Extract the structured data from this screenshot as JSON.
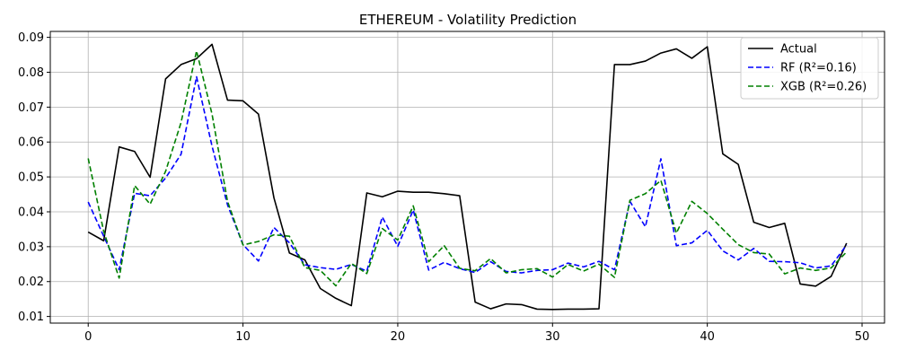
{
  "chart_data": {
    "type": "line",
    "title": "ETHEREUM - Volatility Prediction",
    "xlabel": "",
    "ylabel": "",
    "xlim": [
      -2.45,
      51.45
    ],
    "ylim": [
      0.0081,
      0.0917
    ],
    "xticks": [
      0,
      10,
      20,
      30,
      40,
      50
    ],
    "yticks": [
      0.01,
      0.02,
      0.03,
      0.04,
      0.05,
      0.06,
      0.07,
      0.08,
      0.09
    ],
    "xtick_labels": [
      "0",
      "10",
      "20",
      "30",
      "40",
      "50"
    ],
    "ytick_labels": [
      "0.01",
      "0.02",
      "0.03",
      "0.04",
      "0.05",
      "0.06",
      "0.07",
      "0.08",
      "0.09"
    ],
    "grid": true,
    "legend_position": "top-right",
    "x": [
      0,
      1,
      2,
      3,
      4,
      5,
      6,
      7,
      8,
      9,
      10,
      11,
      12,
      13,
      14,
      15,
      16,
      17,
      18,
      19,
      20,
      21,
      22,
      23,
      24,
      25,
      26,
      27,
      28,
      29,
      30,
      31,
      32,
      33,
      34,
      35,
      36,
      37,
      38,
      39,
      40,
      41,
      42,
      43,
      44,
      45,
      46,
      47,
      48,
      49
    ],
    "series": [
      {
        "name": "Actual",
        "color": "#000000",
        "dash": "solid",
        "values": [
          0.0342,
          0.0317,
          0.0586,
          0.0573,
          0.0499,
          0.0781,
          0.0822,
          0.0839,
          0.088,
          0.072,
          0.0718,
          0.068,
          0.044,
          0.0282,
          0.0262,
          0.018,
          0.0152,
          0.0131,
          0.0454,
          0.0443,
          0.0459,
          0.0456,
          0.0456,
          0.0452,
          0.0446,
          0.0141,
          0.0122,
          0.0136,
          0.0134,
          0.0121,
          0.012,
          0.0121,
          0.0121,
          0.0122,
          0.0822,
          0.0822,
          0.0832,
          0.0855,
          0.0867,
          0.084,
          0.0873,
          0.0566,
          0.0536,
          0.037,
          0.0355,
          0.0367,
          0.0193,
          0.0187,
          0.0215,
          0.031
        ]
      },
      {
        "name": "RF (R²=0.16)",
        "color": "#0000ff",
        "dash": "dashed",
        "values": [
          0.0428,
          0.033,
          0.0234,
          0.0453,
          0.0446,
          0.0497,
          0.0565,
          0.0787,
          0.0588,
          0.042,
          0.0306,
          0.0259,
          0.0355,
          0.0311,
          0.0248,
          0.024,
          0.0235,
          0.0249,
          0.023,
          0.0385,
          0.0301,
          0.0405,
          0.0233,
          0.0255,
          0.0237,
          0.0226,
          0.0257,
          0.0229,
          0.0225,
          0.0232,
          0.0234,
          0.0253,
          0.0242,
          0.0258,
          0.0234,
          0.043,
          0.0357,
          0.0552,
          0.0303,
          0.0311,
          0.0347,
          0.0288,
          0.0262,
          0.0295,
          0.0258,
          0.0257,
          0.0254,
          0.0239,
          0.0245,
          0.0305
        ]
      },
      {
        "name": "XGB (R²=0.26)",
        "color": "#008000",
        "dash": "dashed",
        "values": [
          0.0553,
          0.0344,
          0.021,
          0.0475,
          0.0422,
          0.0516,
          0.0656,
          0.0861,
          0.068,
          0.043,
          0.0305,
          0.0315,
          0.0334,
          0.033,
          0.024,
          0.0232,
          0.0188,
          0.0252,
          0.0223,
          0.0352,
          0.0319,
          0.0417,
          0.0257,
          0.0303,
          0.0238,
          0.0231,
          0.0266,
          0.0225,
          0.0234,
          0.0237,
          0.0213,
          0.0249,
          0.023,
          0.025,
          0.0212,
          0.0433,
          0.0452,
          0.049,
          0.0339,
          0.043,
          0.0395,
          0.035,
          0.0306,
          0.0283,
          0.0279,
          0.0222,
          0.0239,
          0.0232,
          0.0239,
          0.0285
        ]
      }
    ]
  }
}
